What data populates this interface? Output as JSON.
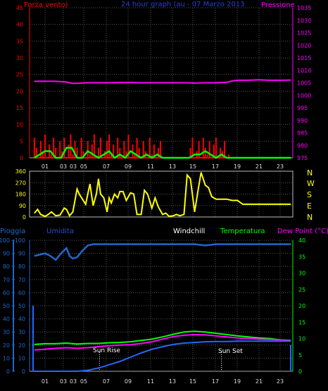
{
  "chart_data": [
    {
      "type": "line",
      "title": "24 hour graph (au - 07 Marzo 2013",
      "left_axis_label": "Forza vento)",
      "right_axis_label": "Pressione",
      "left_ylim": [
        0,
        45
      ],
      "left_ticks": [
        0,
        5,
        10,
        15,
        20,
        25,
        30,
        35,
        40,
        45
      ],
      "right_ylim": [
        975,
        1035
      ],
      "right_ticks": [
        975,
        980,
        985,
        990,
        995,
        1000,
        1005,
        1010,
        1015,
        1020,
        1025,
        1030,
        1035
      ],
      "xlim": [
        0,
        24
      ],
      "x_ticks": [
        "01",
        "03",
        "05",
        "07",
        "09",
        "11",
        "13",
        "15",
        "17",
        "19",
        "21",
        "23"
      ],
      "extra_x_ticks": [
        "03"
      ],
      "grid": true,
      "series": [
        {
          "axis": "right",
          "color": "#ff00ff",
          "x": [
            0,
            1,
            2,
            3,
            3.5,
            4,
            5,
            6,
            7,
            8,
            9,
            10,
            11,
            12,
            13,
            14,
            15,
            16,
            17,
            18,
            18.5,
            19,
            20,
            21,
            22,
            23,
            24
          ],
          "values": [
            1005.6,
            1005.6,
            1005.6,
            1005.3,
            1004.8,
            1004.8,
            1005.0,
            1005.0,
            1005.0,
            1005.1,
            1005.1,
            1005.0,
            1005.0,
            1005.0,
            1005.0,
            1005.0,
            1004.9,
            1005.0,
            1005.0,
            1005.2,
            1005.7,
            1006.0,
            1006.0,
            1006.2,
            1006.0,
            1006.0,
            1006.1
          ]
        },
        {
          "axis": "left",
          "color": "#ff0000",
          "x": [
            0,
            0.2,
            0.4,
            0.6,
            0.8,
            1.0,
            1.2,
            1.4,
            1.6,
            1.8,
            2.0,
            2.2,
            2.4,
            2.6,
            2.8,
            3.0,
            3.2,
            3.4,
            3.6,
            3.8,
            4.0,
            4.2,
            4.4,
            4.6,
            4.8,
            5.0,
            5.2,
            5.4,
            5.6,
            5.8,
            6.0,
            6.2,
            6.4,
            6.6,
            6.8,
            7.0,
            7.2,
            7.4,
            7.6,
            7.8,
            8.0,
            8.2,
            8.4,
            8.6,
            8.8,
            9.0,
            9.2,
            9.4,
            9.6,
            9.8,
            10.0,
            10.2,
            10.4,
            10.6,
            10.8,
            11.0,
            11.2,
            11.4,
            11.6,
            11.8,
            12.0,
            14.6,
            14.8,
            15.0,
            15.2,
            15.4,
            15.6,
            15.8,
            16.0,
            16.2,
            16.4,
            16.6,
            16.8,
            17.0,
            17.2,
            17.4,
            17.6,
            17.8,
            18.0,
            18.2,
            18.4,
            19.0,
            20.0,
            21.0,
            22.0,
            23.0,
            24.0
          ],
          "values": [
            6,
            3,
            0,
            5,
            2,
            7,
            0,
            4,
            1,
            6,
            3,
            0,
            5,
            2,
            6,
            0,
            4,
            7,
            1,
            5,
            3,
            0,
            6,
            2,
            0,
            5,
            1,
            4,
            7,
            0,
            3,
            6,
            0,
            2,
            5,
            7,
            1,
            4,
            0,
            6,
            3,
            0,
            5,
            2,
            7,
            0,
            4,
            1,
            6,
            3,
            0,
            5,
            2,
            0,
            6,
            1,
            4,
            0,
            3,
            5,
            0,
            3,
            6,
            0,
            2,
            5,
            0,
            6,
            3,
            1,
            5,
            0,
            4,
            6,
            0,
            3,
            2,
            5,
            0,
            1,
            0,
            0,
            0,
            0,
            0,
            0,
            0
          ]
        },
        {
          "axis": "left",
          "color": "#00ff00",
          "x": [
            0,
            0.5,
            1,
            1.5,
            2,
            2.5,
            3,
            3.5,
            4,
            4.5,
            5,
            5.5,
            6,
            6.5,
            7,
            7.5,
            8,
            8.5,
            9,
            9.5,
            10,
            10.5,
            11,
            11.5,
            12,
            14.5,
            15,
            15.5,
            16,
            16.5,
            17,
            17.5,
            18,
            19,
            20,
            21,
            22,
            23,
            24
          ],
          "values": [
            0,
            1,
            2,
            2,
            0,
            0,
            3,
            3,
            0,
            0,
            2,
            1,
            0,
            1,
            2,
            0,
            1,
            0,
            2,
            1,
            0,
            1,
            0,
            1,
            0,
            0,
            1,
            1,
            2,
            1,
            0,
            1,
            0,
            0,
            0,
            0,
            0,
            0,
            0
          ]
        }
      ]
    },
    {
      "type": "line",
      "right_labels": [
        "N",
        "W",
        "S",
        "E",
        "N"
      ],
      "ylim": [
        0,
        360
      ],
      "y_ticks": [
        0,
        90,
        180,
        270,
        360
      ],
      "xlim": [
        0,
        24
      ],
      "x_ticks": [
        "01",
        "03",
        "05",
        "07",
        "09",
        "11",
        "13",
        "15",
        "17",
        "19",
        "21",
        "23"
      ],
      "series": [
        {
          "color": "#ffff00",
          "x": [
            0,
            0.3,
            0.6,
            1.0,
            1.3,
            1.6,
            2.0,
            2.4,
            2.8,
            3.0,
            3.3,
            3.6,
            4.0,
            4.2,
            4.5,
            4.8,
            5.0,
            5.2,
            5.5,
            5.8,
            6.0,
            6.2,
            6.5,
            6.8,
            7.0,
            7.2,
            7.5,
            7.8,
            8.0,
            8.3,
            8.6,
            9.0,
            9.3,
            9.6,
            10.0,
            10.3,
            10.6,
            11.0,
            11.3,
            11.6,
            12.0,
            12.3,
            12.6,
            13.0,
            13.3,
            13.6,
            14.0,
            14.3,
            14.6,
            15.0,
            15.3,
            15.6,
            16.0,
            16.3,
            16.6,
            17.0,
            17.5,
            18.0,
            18.5,
            19.0,
            19.5,
            20.0,
            21.0,
            22.0,
            23.0,
            24.0
          ],
          "values": [
            30,
            60,
            20,
            5,
            20,
            40,
            10,
            15,
            70,
            60,
            10,
            40,
            220,
            180,
            140,
            100,
            180,
            260,
            90,
            180,
            300,
            180,
            150,
            40,
            150,
            110,
            180,
            150,
            200,
            200,
            130,
            190,
            180,
            20,
            20,
            210,
            180,
            70,
            150,
            80,
            20,
            30,
            5,
            10,
            20,
            10,
            20,
            330,
            300,
            40,
            200,
            350,
            250,
            230,
            160,
            140,
            140,
            140,
            130,
            130,
            100,
            100,
            100,
            100,
            100,
            100
          ]
        }
      ]
    },
    {
      "type": "line",
      "left_axis_label": "Pioggia",
      "series_labels": [
        {
          "name": "Umidita",
          "color": "#2a4dc9"
        },
        {
          "name": "Windchill",
          "color": "#ffffff"
        },
        {
          "name": "Temperatura",
          "color": "#00ff00"
        },
        {
          "name": "Dew Point (°C)",
          "color": "#ff00ff"
        }
      ],
      "left_ylim": [
        0,
        100
      ],
      "left_ticks": [
        0,
        10,
        20,
        30,
        40,
        50,
        60,
        70,
        80,
        90,
        100
      ],
      "right_ylim": [
        0,
        40
      ],
      "right_ticks": [
        0,
        5,
        10,
        15,
        20,
        25,
        30,
        35,
        40
      ],
      "xlim": [
        0,
        24
      ],
      "x_ticks": [
        "01",
        "03",
        "05",
        "07",
        "09",
        "11",
        "13",
        "15",
        "17",
        "19",
        "21",
        "23"
      ],
      "extra_x_ticks": [
        "03"
      ],
      "annotations": [
        {
          "text": "Sun Rise",
          "x": 6.1
        },
        {
          "text": "Sun Set",
          "x": 17.5
        }
      ],
      "series": [
        {
          "name": "Umidita",
          "axis": "left",
          "color": "#2266cc",
          "x": [
            0,
            0.5,
            1,
            1.5,
            2,
            2.5,
            3,
            3.3,
            3.6,
            4,
            4.5,
            5,
            5.5,
            6,
            7,
            8,
            9,
            10,
            11,
            12,
            13,
            14,
            15,
            16,
            17,
            18,
            19,
            20,
            21,
            22,
            23,
            24
          ],
          "values": [
            88,
            89,
            90,
            88,
            85,
            90,
            94,
            88,
            86,
            87,
            92,
            96,
            97,
            97,
            97,
            97,
            97,
            97,
            97,
            97,
            97,
            97,
            97,
            96,
            97,
            97,
            97,
            97,
            97,
            97,
            97,
            97
          ]
        },
        {
          "name": "Temperatura",
          "axis": "right",
          "color": "#00ff00",
          "x": [
            0,
            1,
            2,
            3,
            4,
            5,
            6,
            7,
            8,
            9,
            10,
            11,
            12,
            13,
            14,
            15,
            16,
            17,
            18,
            19,
            20,
            21,
            22,
            23,
            24
          ],
          "values": [
            8.2,
            8.4,
            8.4,
            8.6,
            8.3,
            8.5,
            8.5,
            8.7,
            8.8,
            9.0,
            9.4,
            9.8,
            10.5,
            11.3,
            12.0,
            12.2,
            12.0,
            11.6,
            11.2,
            10.8,
            10.5,
            10.2,
            10.0,
            9.6,
            9.4
          ]
        },
        {
          "name": "Dew Point (°C)",
          "axis": "right",
          "color": "#ff00ff",
          "x": [
            0,
            1,
            2,
            3,
            4,
            5,
            6,
            7,
            8,
            9,
            10,
            11,
            12,
            13,
            14,
            15,
            16,
            17,
            18,
            19,
            20,
            21,
            22,
            23,
            24
          ],
          "values": [
            6.5,
            6.7,
            7.0,
            7.2,
            7.0,
            7.2,
            7.5,
            7.8,
            8.0,
            8.1,
            8.5,
            9.0,
            9.8,
            10.6,
            11.0,
            11.2,
            11.1,
            10.8,
            10.5,
            10.2,
            10.0,
            9.8,
            9.7,
            9.5,
            9.3
          ]
        },
        {
          "name": "Windchill",
          "axis": "right",
          "color": "#ffffff",
          "x": [
            0,
            6,
            24
          ],
          "values": [
            0,
            0,
            0
          ]
        },
        {
          "name": "rain",
          "axis": "right",
          "color": "#2266ff",
          "x": [
            0,
            3,
            4,
            5,
            6,
            7,
            8,
            9,
            10,
            11,
            12,
            13,
            14,
            15,
            16,
            17,
            18,
            19,
            20,
            21,
            22,
            23,
            24
          ],
          "values": [
            0,
            0,
            0,
            0.3,
            1.0,
            2.0,
            3.0,
            4.3,
            5.6,
            6.7,
            7.5,
            8.2,
            8.6,
            8.8,
            9.0,
            9.1,
            9.1,
            9.2,
            9.2,
            9.2,
            9.2,
            9.2,
            9.2
          ]
        }
      ]
    }
  ]
}
